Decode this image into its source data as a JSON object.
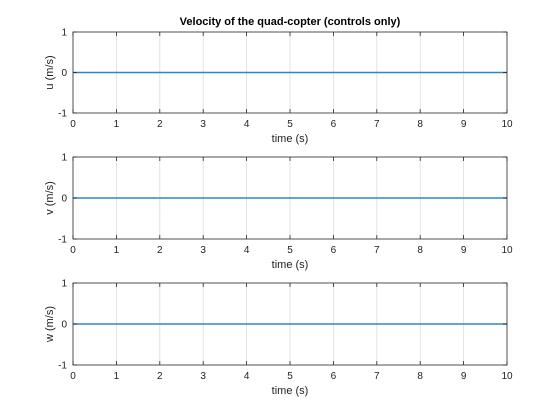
{
  "colors": {
    "line": "#2e86c8",
    "grid": "#dcdcdc",
    "axis": "#262626"
  },
  "chart_data": [
    {
      "type": "line",
      "title": "Velocity of the quad-copter (controls only)",
      "xlabel": "time (s)",
      "ylabel": "u (m/s)",
      "xlim": [
        0,
        10
      ],
      "ylim": [
        -1,
        1
      ],
      "xticks": [
        "0",
        "1",
        "2",
        "3",
        "4",
        "5",
        "6",
        "7",
        "8",
        "9",
        "10"
      ],
      "yticks": [
        "-1",
        "0",
        "1"
      ],
      "grid": "x",
      "series": [
        {
          "x": [
            0,
            10
          ],
          "y": [
            0,
            0
          ]
        }
      ]
    },
    {
      "type": "line",
      "title": "",
      "xlabel": "time (s)",
      "ylabel": "v (m/s)",
      "xlim": [
        0,
        10
      ],
      "ylim": [
        -1,
        1
      ],
      "xticks": [
        "0",
        "1",
        "2",
        "3",
        "4",
        "5",
        "6",
        "7",
        "8",
        "9",
        "10"
      ],
      "yticks": [
        "-1",
        "0",
        "1"
      ],
      "grid": "x",
      "series": [
        {
          "x": [
            0,
            10
          ],
          "y": [
            0,
            0
          ]
        }
      ]
    },
    {
      "type": "line",
      "title": "",
      "xlabel": "time (s)",
      "ylabel": "w (m/s)",
      "xlim": [
        0,
        10
      ],
      "ylim": [
        -1,
        1
      ],
      "xticks": [
        "0",
        "1",
        "2",
        "3",
        "4",
        "5",
        "6",
        "7",
        "8",
        "9",
        "10"
      ],
      "yticks": [
        "-1",
        "0",
        "1"
      ],
      "grid": "x",
      "series": [
        {
          "x": [
            0,
            10
          ],
          "y": [
            0,
            0
          ]
        }
      ]
    }
  ]
}
